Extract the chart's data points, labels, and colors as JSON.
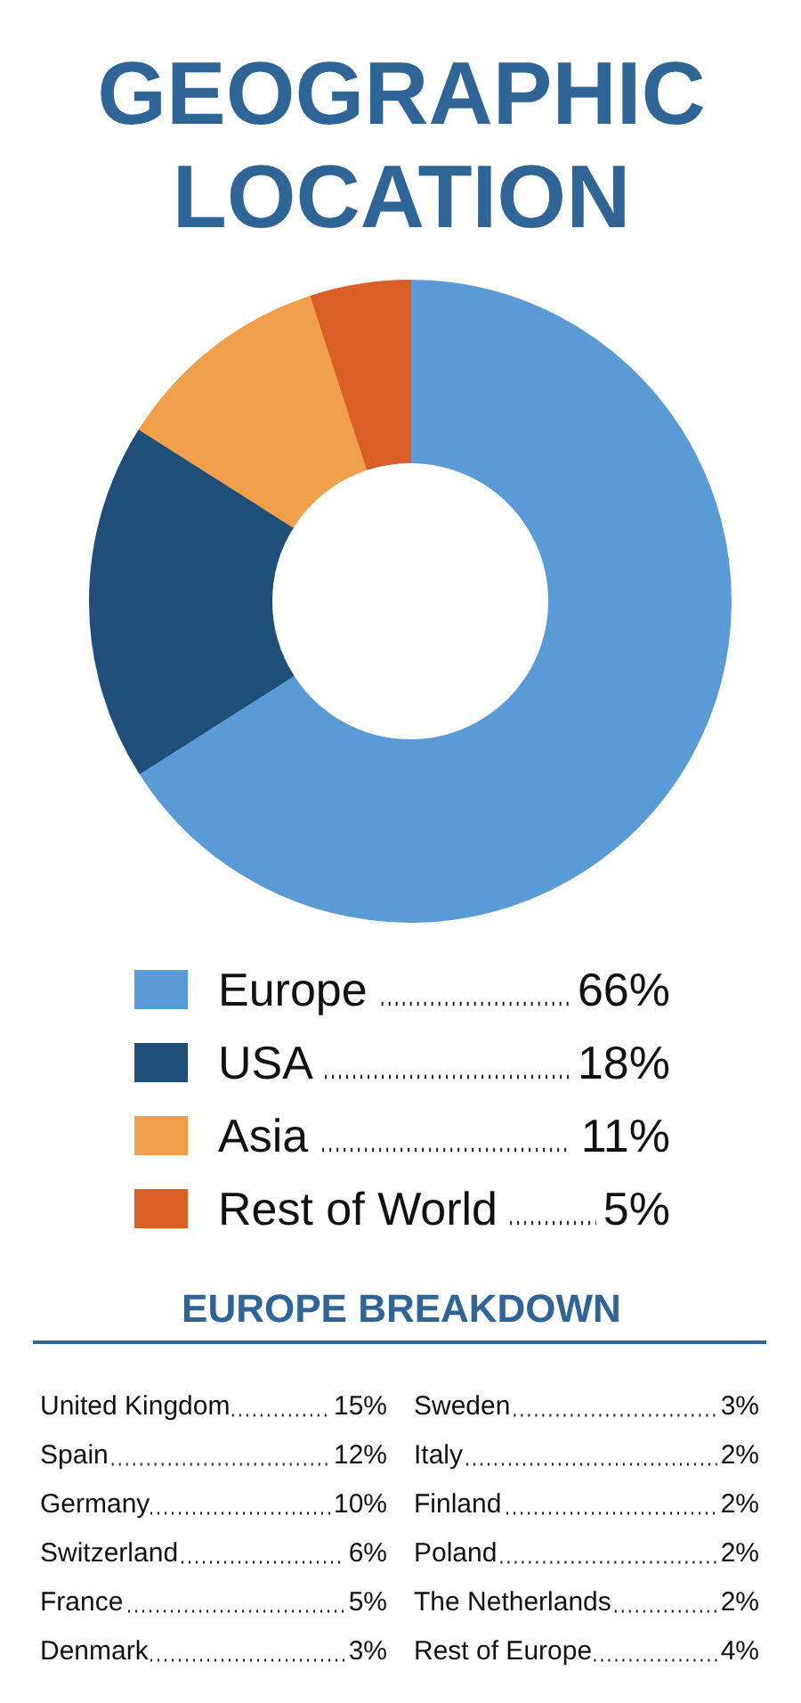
{
  "chart_data": [
    {
      "type": "donut",
      "title": "GEOGRAPHIC LOCATION",
      "categories": [
        "Europe",
        "USA",
        "Asia",
        "Rest of World"
      ],
      "values": [
        66,
        18,
        11,
        5
      ],
      "value_labels": [
        "66%",
        "18%",
        "11%",
        "5%"
      ],
      "colors": [
        "#5b9bd5",
        "#1f4e79",
        "#f0a04b",
        "#d95f27"
      ],
      "legend": "bottom"
    },
    {
      "type": "other",
      "title": "EUROPE BREAKDOWN",
      "categories": [
        "United Kingdom",
        "Spain",
        "Germany",
        "Switzerland",
        "France",
        "Denmark",
        "Sweden",
        "Italy",
        "Finland",
        "Poland",
        "The Netherlands",
        "Rest of Europe"
      ],
      "value_labels": [
        "15%",
        "12%",
        "10%",
        "6%",
        "5%",
        "3%",
        "3%",
        "2%",
        "2%",
        "2%",
        "2%",
        "4%"
      ]
    }
  ]
}
